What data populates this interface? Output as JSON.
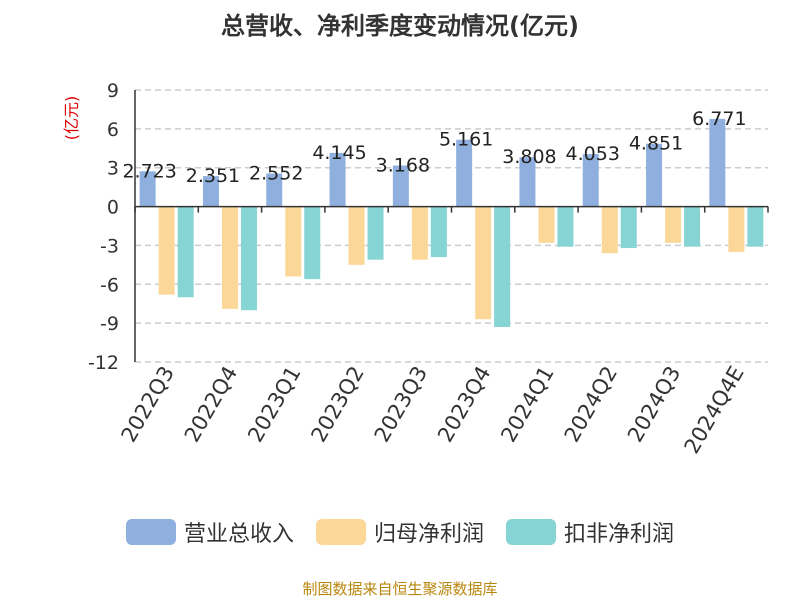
{
  "chart_data": {
    "type": "bar",
    "title": "总营收、净利季度变动情况(亿元)",
    "ylabel": "(亿元)",
    "xlabel": "",
    "ylim": [
      -12,
      9
    ],
    "yticks": [
      9,
      6,
      3,
      0,
      -3,
      -6,
      -9,
      -12
    ],
    "grid": true,
    "legend_position": "bottom",
    "categories": [
      "2022Q3",
      "2022Q4",
      "2023Q1",
      "2023Q2",
      "2023Q3",
      "2023Q4",
      "2024Q1",
      "2024Q2",
      "2024Q3",
      "2024Q4E"
    ],
    "series": [
      {
        "name": "营业总收入",
        "color": "#8fb0de",
        "values": [
          2.723,
          2.351,
          2.552,
          4.145,
          3.168,
          5.161,
          3.808,
          4.053,
          4.851,
          6.771
        ],
        "labels": [
          "2.723",
          "2.351",
          "2.552",
          "4.145",
          "3.168",
          "5.161",
          "3.808",
          "4.053",
          "4.851",
          "6.771"
        ]
      },
      {
        "name": "归母净利润",
        "color": "#fcd898",
        "values": [
          -6.8,
          -7.9,
          -5.4,
          -4.5,
          -4.1,
          -8.7,
          -2.8,
          -3.6,
          -2.8,
          -3.5
        ]
      },
      {
        "name": "扣非净利润",
        "color": "#86d4d4",
        "values": [
          -7.0,
          -8.0,
          -5.6,
          -4.1,
          -3.9,
          -9.3,
          -3.1,
          -3.2,
          -3.1,
          -3.1
        ]
      }
    ]
  },
  "source_note": "制图数据来自恒生聚源数据库"
}
